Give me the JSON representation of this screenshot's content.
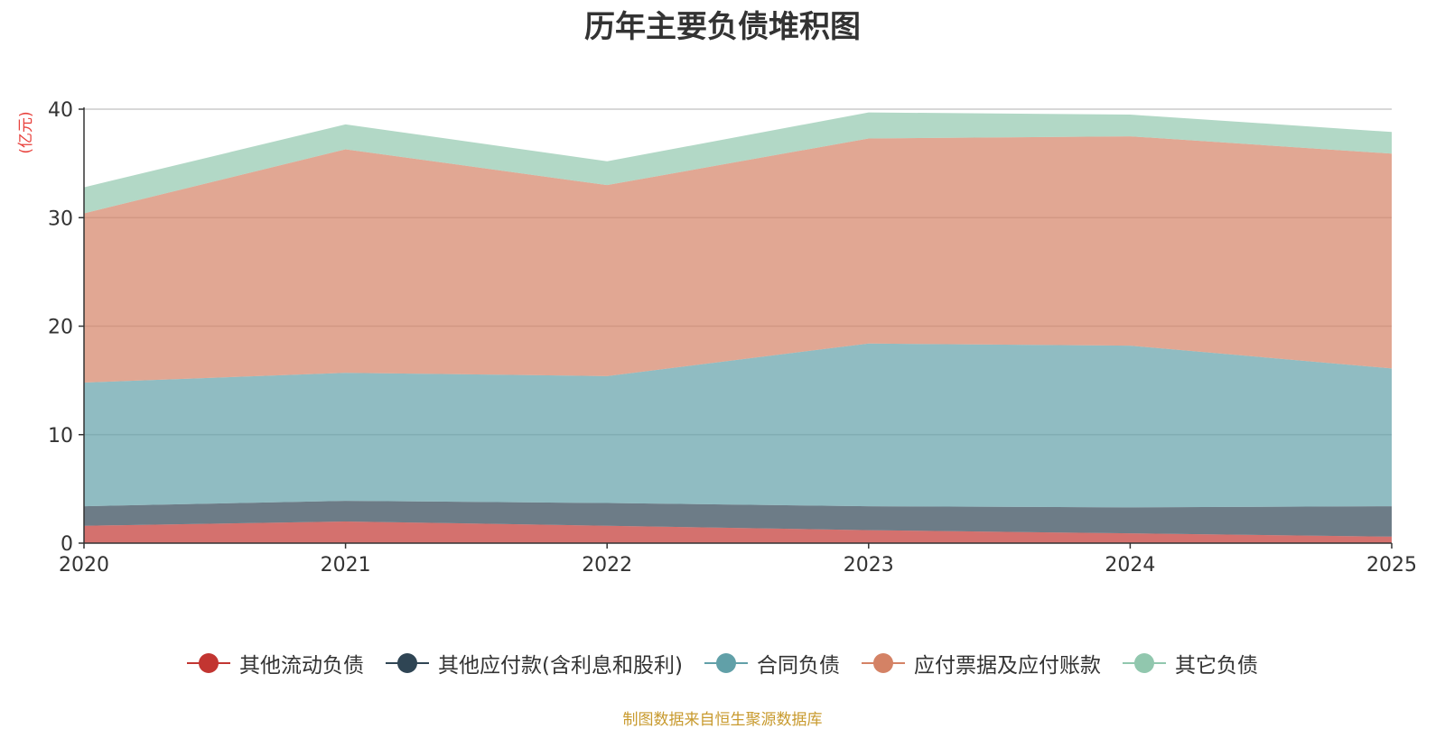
{
  "chart_data": {
    "type": "area",
    "stacked": true,
    "title": "历年主要负债堆积图",
    "ylabel": "(亿元)",
    "xlabel": "",
    "x": [
      "2020",
      "2021",
      "2022",
      "2023",
      "2024",
      "2025"
    ],
    "ylim": [
      0,
      40
    ],
    "yticks": [
      0,
      10,
      20,
      30,
      40
    ],
    "grid": true,
    "legend_position": "bottom",
    "series": [
      {
        "name": "其他流动负债",
        "color": "#c23531",
        "values": [
          1.6,
          2.0,
          1.6,
          1.2,
          0.9,
          0.6
        ]
      },
      {
        "name": "其他应付款(含利息和股利)",
        "color": "#2f4554",
        "values": [
          1.8,
          1.9,
          2.1,
          2.2,
          2.4,
          2.8
        ]
      },
      {
        "name": "合同负债",
        "color": "#61a0a8",
        "values": [
          11.4,
          11.8,
          11.7,
          15.0,
          14.9,
          12.7
        ]
      },
      {
        "name": "应付票据及应付账款",
        "color": "#d48265",
        "values": [
          15.6,
          20.6,
          17.6,
          18.9,
          19.3,
          19.8
        ]
      },
      {
        "name": "其它负债",
        "color": "#91c7ae",
        "values": [
          2.4,
          2.3,
          2.2,
          2.4,
          2.0,
          2.0
        ]
      }
    ],
    "source": "制图数据来自恒生聚源数据库"
  }
}
